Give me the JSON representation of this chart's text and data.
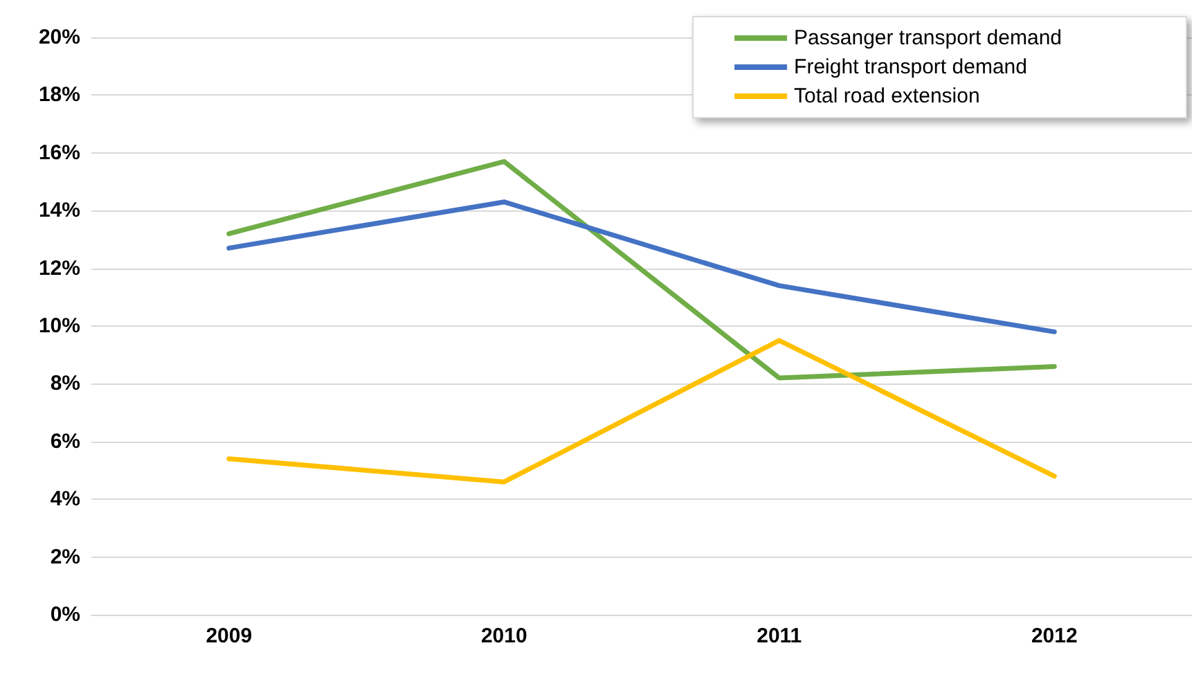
{
  "chart_data": {
    "type": "line",
    "categories": [
      "2009",
      "2010",
      "2011",
      "2012"
    ],
    "series": [
      {
        "name": "Passanger transport demand",
        "color": "#70ad47",
        "values": [
          13.2,
          15.7,
          8.2,
          8.6
        ]
      },
      {
        "name": "Freight transport demand",
        "color": "#4472c4",
        "values": [
          12.7,
          14.3,
          11.4,
          9.8
        ]
      },
      {
        "name": "Total road extension",
        "color": "#ffc000",
        "values": [
          5.4,
          4.6,
          9.5,
          4.8
        ]
      }
    ],
    "ylim": [
      0,
      20
    ],
    "yticks": [
      {
        "value": 0,
        "label": "0%"
      },
      {
        "value": 2,
        "label": "2%"
      },
      {
        "value": 4,
        "label": "4%"
      },
      {
        "value": 6,
        "label": "6%"
      },
      {
        "value": 8,
        "label": "8%"
      },
      {
        "value": 10,
        "label": "10%"
      },
      {
        "value": 12,
        "label": "12%"
      },
      {
        "value": 14,
        "label": "14%"
      },
      {
        "value": 16,
        "label": "16%"
      },
      {
        "value": 18,
        "label": "18%"
      },
      {
        "value": 20,
        "label": "20%"
      }
    ],
    "grid": "y",
    "legend": "top right",
    "marker": "none",
    "line_style": "solid"
  }
}
